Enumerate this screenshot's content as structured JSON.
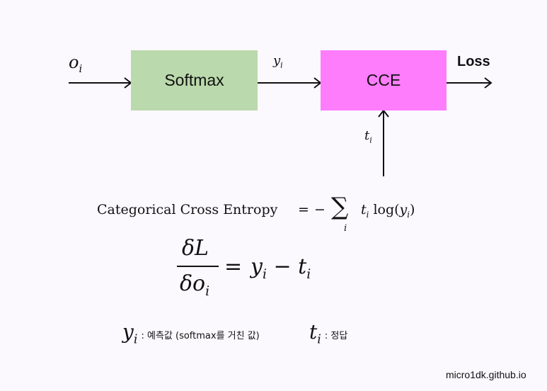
{
  "diagram": {
    "input_label": {
      "base": "o",
      "sub": "i"
    },
    "softmax_label": "Softmax",
    "softmax_output_label": {
      "base": "y",
      "sub": "i"
    },
    "cce_label": "CCE",
    "loss_label": "Loss",
    "target_label": {
      "base": "t",
      "sub": "i"
    },
    "colors": {
      "softmax_box": "#bad9ac",
      "cce_box": "#fd7dfd",
      "background": "#fbf8fe"
    }
  },
  "formula_cce": {
    "name": "Categorical Cross Entropy",
    "equals": "=",
    "minus": "−",
    "sum_symbol": "∑",
    "sum_index": "i",
    "t": "t",
    "t_sub": "i",
    "log": "log(",
    "y": "y",
    "y_sub": "i",
    "close": ")"
  },
  "formula_gradient": {
    "numerator": "δL",
    "denominator_delta": "δo",
    "denominator_sub": "i",
    "rhs_y": "y",
    "rhs_y_sub": "i",
    "rhs_minus": "−",
    "rhs_t": "t",
    "rhs_t_sub": "i",
    "equals": "="
  },
  "legend": {
    "y_symbol": "y",
    "y_sub": "i",
    "y_desc": ": 예측값 (softmax를 거친 값)",
    "t_symbol": "t",
    "t_sub": "i",
    "t_desc": ": 정답"
  },
  "watermark": "micro1dk.github.io"
}
